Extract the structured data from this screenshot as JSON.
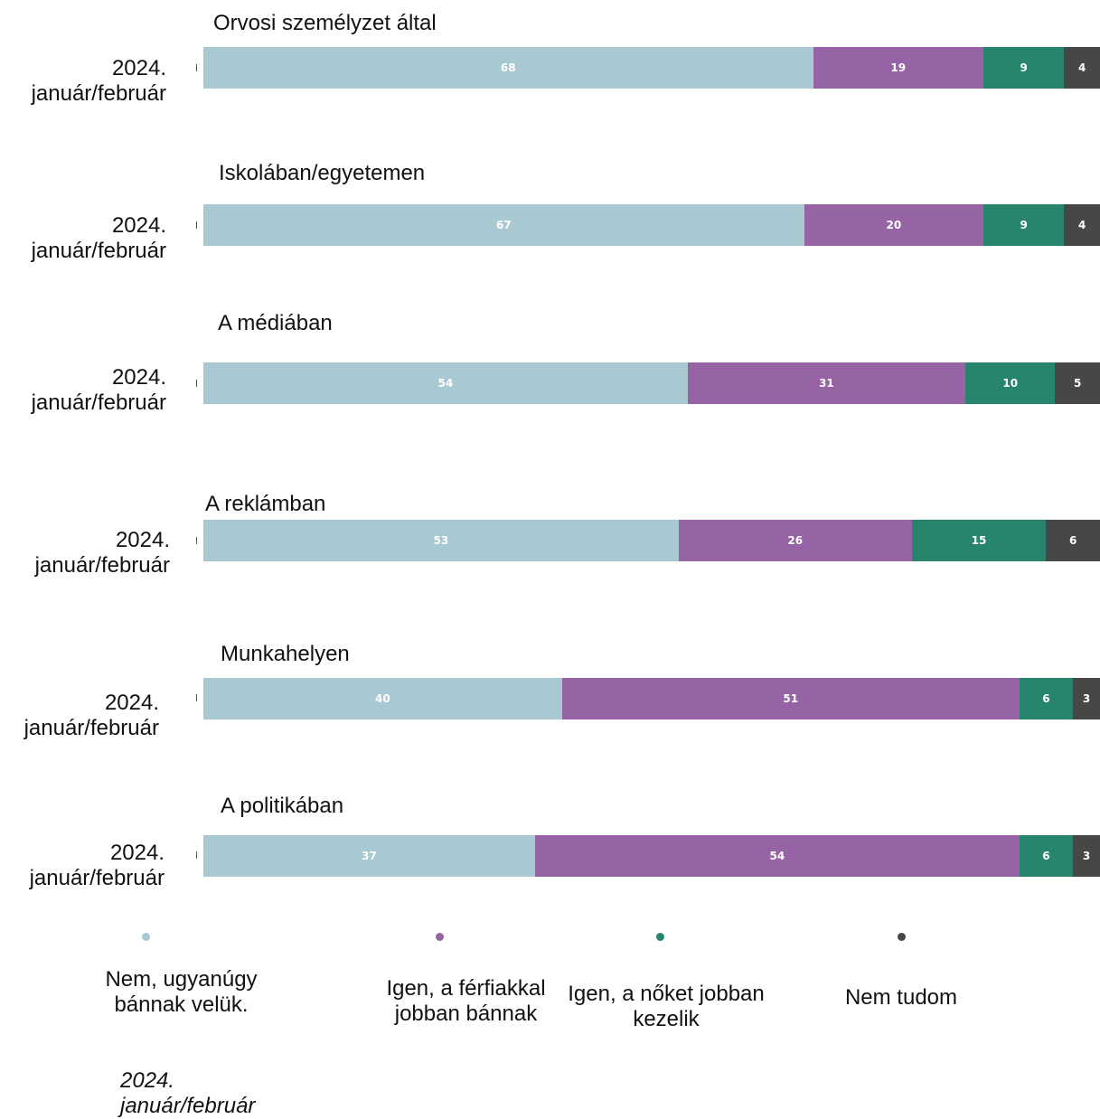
{
  "chart_data": {
    "type": "bar",
    "orientation": "horizontal",
    "stacked": true,
    "unit": "%",
    "categories": [
      "Orvosi személyzet által",
      "Iskolában/egyetemen",
      "A médiában",
      "A reklámban",
      "Munkahelyen",
      "A politikában"
    ],
    "row_label": [
      "2024.",
      "január/február"
    ],
    "series": [
      {
        "name": "Nem, ugyanúgy bánnak velük.",
        "color": "#a8c9d1",
        "values": [
          68,
          67,
          54,
          53,
          40,
          37
        ]
      },
      {
        "name": "Igen, a férfiakkal jobban bánnak",
        "color": "#9663a4",
        "values": [
          19,
          20,
          31,
          26,
          51,
          54
        ]
      },
      {
        "name": "Igen, a nőket jobban kezelik",
        "color": "#27856d",
        "values": [
          9,
          9,
          10,
          15,
          6,
          6
        ]
      },
      {
        "name": "Nem tudom",
        "color": "#474747",
        "values": [
          4,
          4,
          5,
          6,
          3,
          3
        ]
      }
    ],
    "xlim": [
      0,
      100
    ],
    "legend_position": "bottom"
  },
  "groups": [
    {
      "title": "Orvosi személyzet által"
    },
    {
      "title": "Iskolában/egyetemen"
    },
    {
      "title": "A médiában"
    },
    {
      "title": "A reklámban"
    },
    {
      "title": "Munkahelyen"
    },
    {
      "title": "A politikában"
    }
  ],
  "row_label": {
    "line1": "2024.",
    "line2": "január/február"
  },
  "legend": [
    {
      "label": "Nem, ugyanúgy bánnak velük.",
      "color": "#a8c9d1"
    },
    {
      "label": "Igen, a férfiakkal jobban bánnak",
      "color": "#9663a4"
    },
    {
      "label": "Igen, a nőket jobban kezelik",
      "color": "#27856d"
    },
    {
      "label": "Nem tudom",
      "color": "#474747"
    }
  ],
  "footnote": {
    "line1": "2024.",
    "line2": "január/február"
  }
}
